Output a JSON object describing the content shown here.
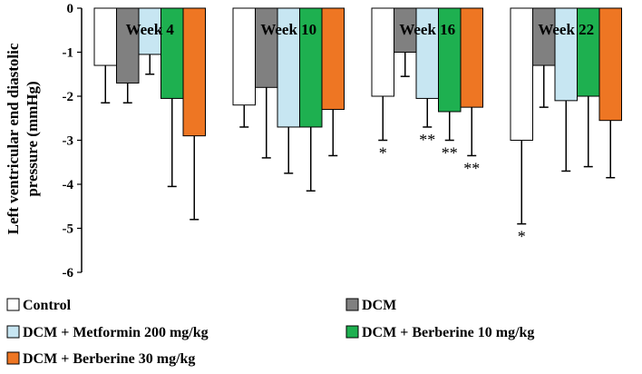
{
  "chart_data": {
    "type": "bar",
    "title": "",
    "xlabel": "",
    "ylabel": [
      "Left ventricular end diastolic",
      "pressure (mmHg)"
    ],
    "ylim": [
      -6,
      0
    ],
    "yticks": [
      0,
      -1,
      -2,
      -3,
      -4,
      -5,
      -6
    ],
    "grid": false,
    "legend_position": "bottom",
    "categories": [
      "Week 4",
      "Week 10",
      "Week 16",
      "Week 22"
    ],
    "series": [
      {
        "name": "Control",
        "color": "#ffffff",
        "values": [
          -1.3,
          -2.2,
          -2.0,
          -3.0
        ],
        "errors": [
          0.85,
          0.5,
          1.0,
          1.9
        ],
        "significance": [
          "",
          "",
          "*",
          "*"
        ]
      },
      {
        "name": "DCM",
        "color": "#808080",
        "values": [
          -1.7,
          -1.8,
          -1.0,
          -1.3
        ],
        "errors": [
          0.45,
          1.6,
          0.55,
          0.95
        ],
        "significance": [
          "",
          "",
          "",
          ""
        ]
      },
      {
        "name": "DCM + Metformin 200 mg/kg",
        "color": "#c7e6f2",
        "values": [
          -1.05,
          -2.7,
          -2.05,
          -2.1
        ],
        "errors": [
          0.45,
          1.05,
          0.65,
          1.6
        ],
        "significance": [
          "",
          "",
          "**",
          ""
        ]
      },
      {
        "name": "DCM + Berberine 10 mg/kg",
        "color": "#1eb050",
        "values": [
          -2.05,
          -2.7,
          -2.35,
          -2.0
        ],
        "errors": [
          2.0,
          1.45,
          0.65,
          1.6
        ],
        "significance": [
          "",
          "",
          "**",
          ""
        ]
      },
      {
        "name": "DCM + Berberine 30 mg/kg",
        "color": "#ee7623",
        "values": [
          -2.9,
          -2.3,
          -2.25,
          -2.55
        ],
        "errors": [
          1.9,
          1.05,
          1.1,
          1.3
        ],
        "significance": [
          "",
          "",
          "**",
          ""
        ]
      }
    ]
  }
}
